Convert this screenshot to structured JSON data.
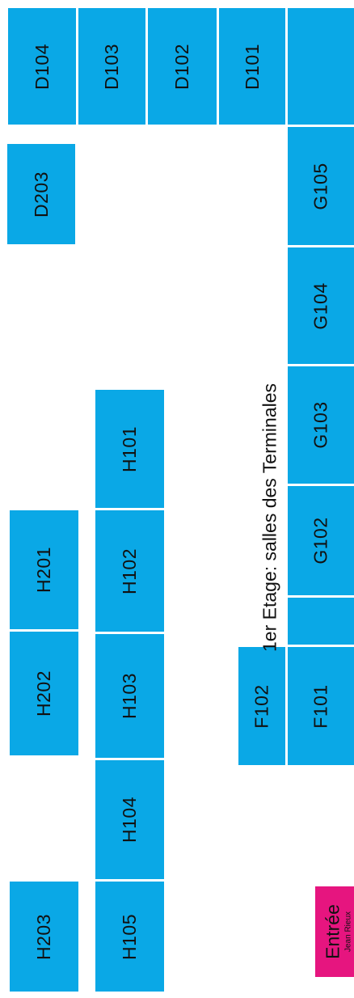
{
  "title": "1er Etage: salles des Terminales",
  "entrance": {
    "label": "Entrée",
    "sublabel": "Jean Rieux"
  },
  "colors": {
    "room": "#0aa8e6",
    "entrance": "#e6157f",
    "text": "#111111",
    "background": "#ffffff"
  },
  "rooms": {
    "d104": "D104",
    "d103": "D103",
    "d102": "D102",
    "d101": "D101",
    "d_end": "",
    "d203": "D203",
    "g105": "G105",
    "g104": "G104",
    "g103": "G103",
    "g102": "G102",
    "g_small": "",
    "f101": "F101",
    "f102": "F102",
    "h101": "H101",
    "h102": "H102",
    "h103": "H103",
    "h104": "H104",
    "h105": "H105",
    "h201": "H201",
    "h202": "H202",
    "h203": "H203"
  }
}
